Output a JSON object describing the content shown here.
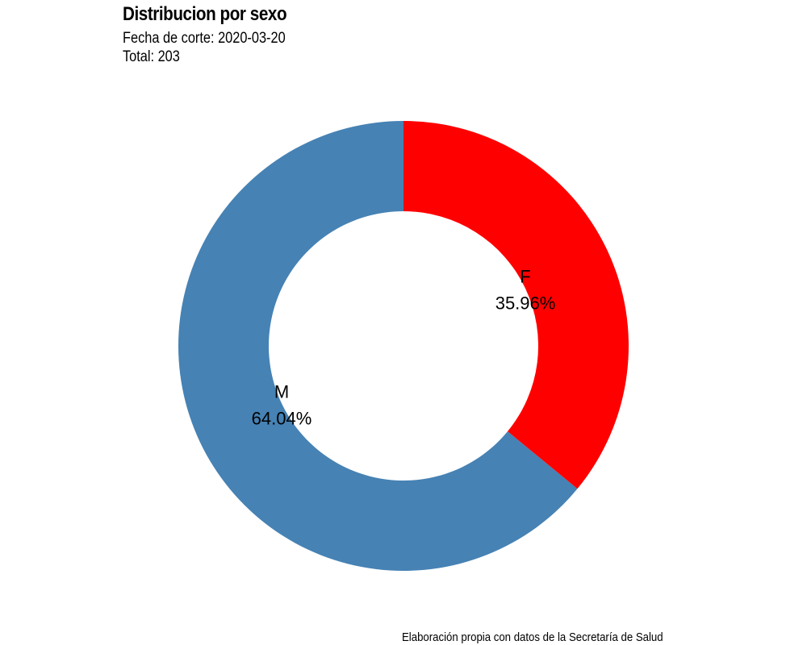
{
  "title": "Distribucion por sexo",
  "subtitle_date": "Fecha de corte: 2020-03-20",
  "subtitle_total": "Total: 203",
  "caption": "Elaboración propia con datos de la Secretaría de Salud",
  "chart_data": {
    "type": "pie",
    "title": "Distribucion por sexo",
    "donut": true,
    "legend": "none",
    "slices": [
      {
        "name": "F",
        "value": 35.96,
        "label": "35.96%",
        "color": "#FF0000"
      },
      {
        "name": "M",
        "value": 64.04,
        "label": "64.04%",
        "color": "#4682B4"
      }
    ]
  }
}
